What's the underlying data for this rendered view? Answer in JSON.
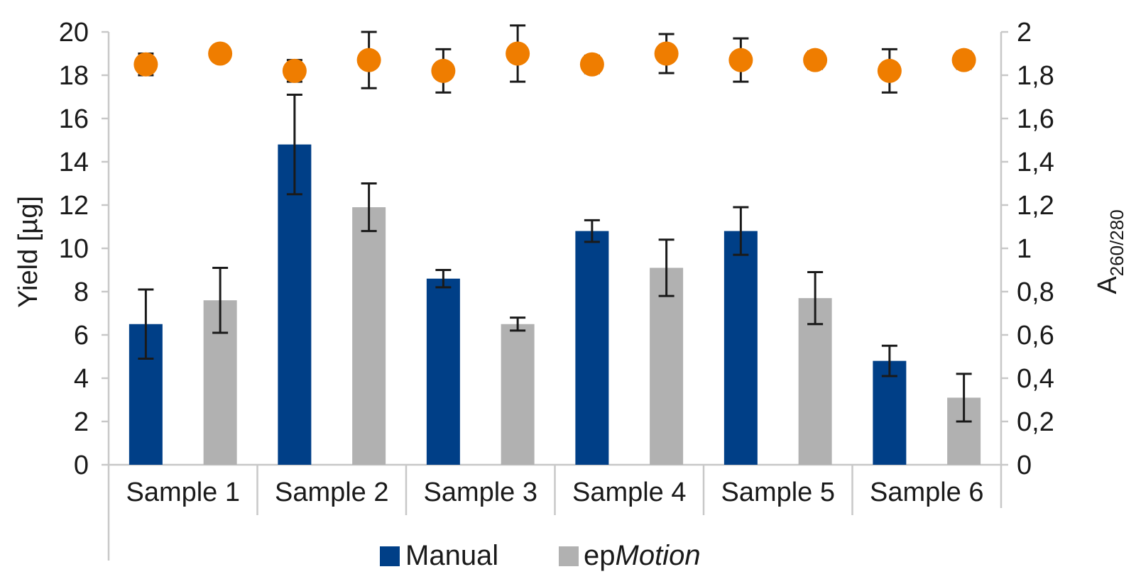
{
  "chart_data": {
    "type": "bar",
    "categories": [
      "Sample 1",
      "Sample 2",
      "Sample 3",
      "Sample 4",
      "Sample 5",
      "Sample 6"
    ],
    "series": [
      {
        "name": "Manual",
        "axis": "left",
        "values": [
          6.5,
          14.8,
          8.6,
          10.8,
          10.8,
          4.8
        ],
        "error": [
          1.6,
          2.3,
          0.4,
          0.5,
          1.1,
          0.7
        ],
        "color": "#003f87"
      },
      {
        "name": "epMotion",
        "axis": "left",
        "values": [
          7.6,
          11.9,
          6.5,
          9.1,
          7.7,
          3.1
        ],
        "error": [
          1.5,
          1.1,
          0.3,
          1.3,
          1.2,
          1.1
        ],
        "color": "#b1b1b1"
      }
    ],
    "ratio_series": {
      "type": "scatter",
      "axis": "right",
      "color": "#ef7d00",
      "values": [
        1.85,
        1.9,
        1.82,
        1.87,
        1.82,
        1.9,
        1.85,
        1.9,
        1.87,
        1.87,
        1.82,
        1.87
      ],
      "error": [
        0.05,
        0,
        0.05,
        0.13,
        0.1,
        0.13,
        0.04,
        0.09,
        0.1,
        0.04,
        0.1,
        0.04
      ]
    },
    "ylabel": "Yield [µg]",
    "ylim": [
      0,
      20
    ],
    "yticks": [
      "0",
      "2",
      "4",
      "6",
      "8",
      "10",
      "12",
      "14",
      "16",
      "18",
      "20"
    ],
    "y2label_main": "A",
    "y2label_sub": "260/280",
    "y2lim": [
      0,
      2
    ],
    "y2ticks": [
      "0",
      "0,2",
      "0,4",
      "0,6",
      "0,8",
      "1",
      "1,2",
      "1,4",
      "1,6",
      "1,8",
      "2"
    ],
    "legend": [
      {
        "label_plain": "ep",
        "label_italic": "Motion",
        "color": "#b1b1b1"
      }
    ],
    "legend_manual": {
      "label": "Manual",
      "color": "#003f87"
    },
    "legend_position": "bottom",
    "grid": false
  }
}
